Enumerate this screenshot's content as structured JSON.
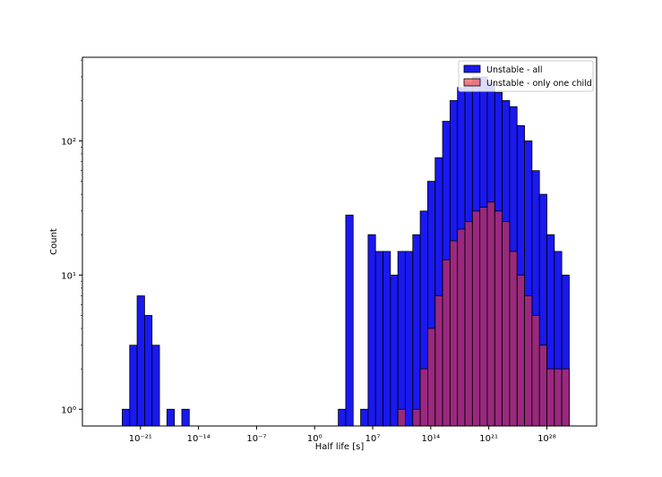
{
  "chart_data": {
    "type": "bar",
    "title": "",
    "xlabel": "Half life [s]",
    "ylabel": "Count",
    "x_scale": "log",
    "y_scale": "log",
    "x_bin_edges_log10": [
      -23.2,
      30.7
    ],
    "bin_count": 60,
    "xlim_log10": [
      -28,
      34
    ],
    "ylim": [
      0.75,
      420
    ],
    "x_ticks": [
      {
        "value": -21,
        "label": "10⁻²¹"
      },
      {
        "value": -14,
        "label": "10⁻¹⁴"
      },
      {
        "value": -7,
        "label": "10⁻⁷"
      },
      {
        "value": 0,
        "label": "10⁰"
      },
      {
        "value": 7,
        "label": "10⁷"
      },
      {
        "value": 14,
        "label": "10¹⁴"
      },
      {
        "value": 21,
        "label": "10²¹"
      },
      {
        "value": 28,
        "label": "10²⁸"
      }
    ],
    "y_ticks": [
      {
        "value": 1,
        "label": "10⁰"
      },
      {
        "value": 10,
        "label": "10¹"
      },
      {
        "value": 100,
        "label": "10²"
      }
    ],
    "legend_position": "top-right",
    "series": [
      {
        "name": "Unstable - all",
        "color": "#0000ee",
        "values": [
          1,
          3,
          7,
          5,
          3,
          0,
          1,
          0,
          1,
          0,
          0,
          0,
          0,
          0,
          0,
          0,
          0,
          0,
          0,
          0,
          0,
          0,
          0,
          0,
          0,
          0,
          0,
          0,
          0,
          1,
          28,
          0,
          1,
          20,
          15,
          15,
          10,
          15,
          15,
          20,
          30,
          50,
          75,
          140,
          200,
          250,
          270,
          300,
          300,
          270,
          230,
          200,
          180,
          130,
          100,
          60,
          40,
          20,
          15,
          10
        ]
      },
      {
        "name": "Unstable - only one child",
        "color": "#ee3333",
        "values": [
          0,
          0,
          0,
          0,
          0,
          0,
          0,
          0,
          0,
          0,
          0,
          0,
          0,
          0,
          0,
          0,
          0,
          0,
          0,
          0,
          0,
          0,
          0,
          0,
          0,
          0,
          0,
          0,
          0,
          0,
          0,
          0,
          0,
          0,
          0,
          0,
          0,
          1,
          0,
          1,
          2,
          4,
          7,
          13,
          18,
          22,
          25,
          30,
          32,
          35,
          30,
          25,
          15,
          10,
          7,
          5,
          3,
          2,
          2,
          2
        ]
      }
    ]
  }
}
